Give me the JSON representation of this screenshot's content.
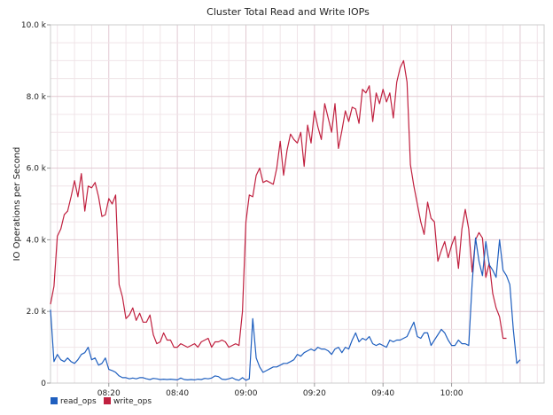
{
  "chart_data": {
    "type": "line",
    "title": "Cluster Total Read and Write IOPs",
    "xlabel": "",
    "ylabel": "IO Operations per Second",
    "ylim": [
      0,
      10000
    ],
    "xlim": [
      "08:03",
      "10:27"
    ],
    "x_ticks": [
      "08:20",
      "08:40",
      "09:00",
      "09:20",
      "09:40",
      "10:00"
    ],
    "y_ticks": [
      {
        "value": 0,
        "label": "0"
      },
      {
        "value": 2000,
        "label": "2.0 k"
      },
      {
        "value": 4000,
        "label": "4.0 k"
      },
      {
        "value": 6000,
        "label": "6.0 k"
      },
      {
        "value": 8000,
        "label": "8.0 k"
      },
      {
        "value": 10000,
        "label": "10.0 k"
      }
    ],
    "grid": true,
    "legend_position": "bottom-left",
    "series": [
      {
        "name": "read_ops",
        "color": "#1f5fbf",
        "points": [
          [
            "08:03",
            2050
          ],
          [
            "08:04",
            600
          ],
          [
            "08:05",
            800
          ],
          [
            "08:06",
            650
          ],
          [
            "08:07",
            600
          ],
          [
            "08:08",
            700
          ],
          [
            "08:09",
            600
          ],
          [
            "08:10",
            550
          ],
          [
            "08:11",
            650
          ],
          [
            "08:12",
            800
          ],
          [
            "08:13",
            850
          ],
          [
            "08:14",
            1000
          ],
          [
            "08:15",
            650
          ],
          [
            "08:16",
            700
          ],
          [
            "08:17",
            500
          ],
          [
            "08:18",
            550
          ],
          [
            "08:19",
            700
          ],
          [
            "08:20",
            380
          ],
          [
            "08:21",
            350
          ],
          [
            "08:22",
            300
          ],
          [
            "08:23",
            200
          ],
          [
            "08:24",
            150
          ],
          [
            "08:25",
            150
          ],
          [
            "08:26",
            120
          ],
          [
            "08:27",
            140
          ],
          [
            "08:28",
            120
          ],
          [
            "08:29",
            150
          ],
          [
            "08:30",
            150
          ],
          [
            "08:31",
            120
          ],
          [
            "08:32",
            100
          ],
          [
            "08:33",
            130
          ],
          [
            "08:34",
            120
          ],
          [
            "08:35",
            100
          ],
          [
            "08:36",
            110
          ],
          [
            "08:37",
            100
          ],
          [
            "08:38",
            110
          ],
          [
            "08:39",
            100
          ],
          [
            "08:40",
            90
          ],
          [
            "08:41",
            140
          ],
          [
            "08:42",
            100
          ],
          [
            "08:43",
            90
          ],
          [
            "08:44",
            100
          ],
          [
            "08:45",
            90
          ],
          [
            "08:46",
            110
          ],
          [
            "08:47",
            100
          ],
          [
            "08:48",
            130
          ],
          [
            "08:49",
            120
          ],
          [
            "08:50",
            140
          ],
          [
            "08:51",
            200
          ],
          [
            "08:52",
            180
          ],
          [
            "08:53",
            110
          ],
          [
            "08:54",
            100
          ],
          [
            "08:55",
            120
          ],
          [
            "08:56",
            150
          ],
          [
            "08:57",
            100
          ],
          [
            "08:58",
            80
          ],
          [
            "08:59",
            150
          ],
          [
            "09:00",
            80
          ],
          [
            "09:01",
            120
          ],
          [
            "09:02",
            1800
          ],
          [
            "09:03",
            700
          ],
          [
            "09:04",
            450
          ],
          [
            "09:05",
            300
          ],
          [
            "09:06",
            350
          ],
          [
            "09:07",
            400
          ],
          [
            "09:08",
            450
          ],
          [
            "09:09",
            450
          ],
          [
            "09:10",
            500
          ],
          [
            "09:11",
            550
          ],
          [
            "09:12",
            550
          ],
          [
            "09:13",
            600
          ],
          [
            "09:14",
            650
          ],
          [
            "09:15",
            800
          ],
          [
            "09:16",
            750
          ],
          [
            "09:17",
            850
          ],
          [
            "09:18",
            900
          ],
          [
            "09:19",
            950
          ],
          [
            "09:20",
            900
          ],
          [
            "09:21",
            1000
          ],
          [
            "09:22",
            950
          ],
          [
            "09:23",
            950
          ],
          [
            "09:24",
            900
          ],
          [
            "09:25",
            800
          ],
          [
            "09:26",
            950
          ],
          [
            "09:27",
            1000
          ],
          [
            "09:28",
            850
          ],
          [
            "09:29",
            1000
          ],
          [
            "09:30",
            950
          ],
          [
            "09:31",
            1200
          ],
          [
            "09:32",
            1400
          ],
          [
            "09:33",
            1150
          ],
          [
            "09:34",
            1250
          ],
          [
            "09:35",
            1200
          ],
          [
            "09:36",
            1300
          ],
          [
            "09:37",
            1100
          ],
          [
            "09:38",
            1050
          ],
          [
            "09:39",
            1100
          ],
          [
            "09:40",
            1050
          ],
          [
            "09:41",
            1000
          ],
          [
            "09:42",
            1200
          ],
          [
            "09:43",
            1150
          ],
          [
            "09:44",
            1200
          ],
          [
            "09:45",
            1200
          ],
          [
            "09:46",
            1250
          ],
          [
            "09:47",
            1300
          ],
          [
            "09:48",
            1500
          ],
          [
            "09:49",
            1700
          ],
          [
            "09:50",
            1300
          ],
          [
            "09:51",
            1250
          ],
          [
            "09:52",
            1400
          ],
          [
            "09:53",
            1400
          ],
          [
            "09:54",
            1050
          ],
          [
            "09:55",
            1200
          ],
          [
            "09:56",
            1350
          ],
          [
            "09:57",
            1500
          ],
          [
            "09:58",
            1400
          ],
          [
            "09:59",
            1200
          ],
          [
            "10:00",
            1050
          ],
          [
            "10:01",
            1050
          ],
          [
            "10:02",
            1200
          ],
          [
            "10:03",
            1100
          ],
          [
            "10:04",
            1100
          ],
          [
            "10:05",
            1050
          ],
          [
            "10:06",
            2800
          ],
          [
            "10:07",
            4050
          ],
          [
            "10:08",
            3400
          ],
          [
            "10:09",
            3000
          ],
          [
            "10:10",
            3950
          ],
          [
            "10:11",
            3300
          ],
          [
            "10:12",
            3150
          ],
          [
            "10:13",
            2950
          ],
          [
            "10:14",
            4000
          ],
          [
            "10:15",
            3150
          ],
          [
            "10:16",
            3000
          ],
          [
            "10:17",
            2750
          ],
          [
            "10:18",
            1500
          ],
          [
            "10:19",
            550
          ],
          [
            "10:20",
            650
          ]
        ]
      },
      {
        "name": "write_ops",
        "color": "#c0203f",
        "points": [
          [
            "08:03",
            2200
          ],
          [
            "08:04",
            2700
          ],
          [
            "08:05",
            4100
          ],
          [
            "08:06",
            4300
          ],
          [
            "08:07",
            4700
          ],
          [
            "08:08",
            4800
          ],
          [
            "08:09",
            5200
          ],
          [
            "08:10",
            5650
          ],
          [
            "08:11",
            5200
          ],
          [
            "08:12",
            5850
          ],
          [
            "08:13",
            4800
          ],
          [
            "08:14",
            5500
          ],
          [
            "08:15",
            5450
          ],
          [
            "08:16",
            5600
          ],
          [
            "08:17",
            5200
          ],
          [
            "08:18",
            4650
          ],
          [
            "08:19",
            4700
          ],
          [
            "08:20",
            5150
          ],
          [
            "08:21",
            5000
          ],
          [
            "08:22",
            5250
          ],
          [
            "08:23",
            2750
          ],
          [
            "08:24",
            2400
          ],
          [
            "08:25",
            1800
          ],
          [
            "08:26",
            1900
          ],
          [
            "08:27",
            2100
          ],
          [
            "08:28",
            1750
          ],
          [
            "08:29",
            1950
          ],
          [
            "08:30",
            1700
          ],
          [
            "08:31",
            1700
          ],
          [
            "08:32",
            1900
          ],
          [
            "08:33",
            1350
          ],
          [
            "08:34",
            1100
          ],
          [
            "08:35",
            1150
          ],
          [
            "08:36",
            1400
          ],
          [
            "08:37",
            1200
          ],
          [
            "08:38",
            1200
          ],
          [
            "08:39",
            1000
          ],
          [
            "08:40",
            1000
          ],
          [
            "08:41",
            1100
          ],
          [
            "08:42",
            1050
          ],
          [
            "08:43",
            1000
          ],
          [
            "08:44",
            1050
          ],
          [
            "08:45",
            1100
          ],
          [
            "08:46",
            1000
          ],
          [
            "08:47",
            1150
          ],
          [
            "08:48",
            1200
          ],
          [
            "08:49",
            1250
          ],
          [
            "08:50",
            1000
          ],
          [
            "08:51",
            1150
          ],
          [
            "08:52",
            1150
          ],
          [
            "08:53",
            1200
          ],
          [
            "08:54",
            1150
          ],
          [
            "08:55",
            1000
          ],
          [
            "08:56",
            1050
          ],
          [
            "08:57",
            1100
          ],
          [
            "08:58",
            1050
          ],
          [
            "08:59",
            2000
          ],
          [
            "09:00",
            4500
          ],
          [
            "09:01",
            5250
          ],
          [
            "09:02",
            5200
          ],
          [
            "09:03",
            5800
          ],
          [
            "09:04",
            6000
          ],
          [
            "09:05",
            5600
          ],
          [
            "09:06",
            5650
          ],
          [
            "09:07",
            5600
          ],
          [
            "09:08",
            5550
          ],
          [
            "09:09",
            6000
          ],
          [
            "09:10",
            6750
          ],
          [
            "09:11",
            5800
          ],
          [
            "09:12",
            6500
          ],
          [
            "09:13",
            6950
          ],
          [
            "09:14",
            6800
          ],
          [
            "09:15",
            6700
          ],
          [
            "09:16",
            7000
          ],
          [
            "09:17",
            6050
          ],
          [
            "09:18",
            7200
          ],
          [
            "09:19",
            6700
          ],
          [
            "09:20",
            7600
          ],
          [
            "09:21",
            7150
          ],
          [
            "09:22",
            6800
          ],
          [
            "09:23",
            7800
          ],
          [
            "09:24",
            7400
          ],
          [
            "09:25",
            7000
          ],
          [
            "09:26",
            7800
          ],
          [
            "09:27",
            6550
          ],
          [
            "09:28",
            7050
          ],
          [
            "09:29",
            7600
          ],
          [
            "09:30",
            7300
          ],
          [
            "09:31",
            7700
          ],
          [
            "09:32",
            7650
          ],
          [
            "09:33",
            7250
          ],
          [
            "09:34",
            8200
          ],
          [
            "09:35",
            8100
          ],
          [
            "09:36",
            8300
          ],
          [
            "09:37",
            7300
          ],
          [
            "09:38",
            8100
          ],
          [
            "09:39",
            7800
          ],
          [
            "09:40",
            8200
          ],
          [
            "09:41",
            7850
          ],
          [
            "09:42",
            8100
          ],
          [
            "09:43",
            7400
          ],
          [
            "09:44",
            8400
          ],
          [
            "09:45",
            8800
          ],
          [
            "09:46",
            9000
          ],
          [
            "09:47",
            8400
          ],
          [
            "09:48",
            6100
          ],
          [
            "09:49",
            5500
          ],
          [
            "09:50",
            5000
          ],
          [
            "09:51",
            4500
          ],
          [
            "09:52",
            4150
          ],
          [
            "09:53",
            5050
          ],
          [
            "09:54",
            4600
          ],
          [
            "09:55",
            4500
          ],
          [
            "09:56",
            3400
          ],
          [
            "09:57",
            3700
          ],
          [
            "09:58",
            3950
          ],
          [
            "09:59",
            3500
          ],
          [
            "10:00",
            3850
          ],
          [
            "10:01",
            4100
          ],
          [
            "10:02",
            3200
          ],
          [
            "10:03",
            4300
          ],
          [
            "10:04",
            4850
          ],
          [
            "10:05",
            4300
          ],
          [
            "10:06",
            3100
          ],
          [
            "10:07",
            4000
          ],
          [
            "10:08",
            4200
          ],
          [
            "10:09",
            4050
          ],
          [
            "10:10",
            2950
          ],
          [
            "10:11",
            3350
          ],
          [
            "10:12",
            2500
          ],
          [
            "10:13",
            2100
          ],
          [
            "10:14",
            1850
          ],
          [
            "10:15",
            1250
          ],
          [
            "10:16",
            1250
          ]
        ]
      }
    ]
  }
}
